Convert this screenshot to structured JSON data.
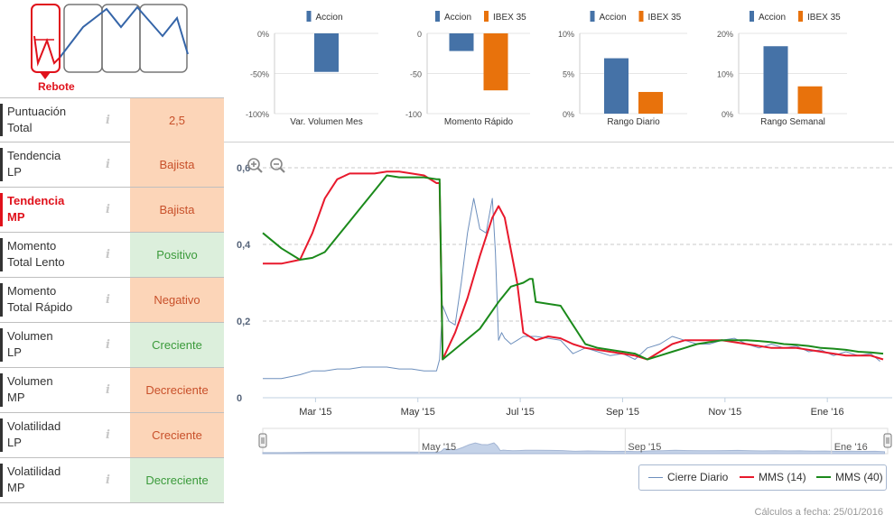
{
  "logo": {
    "label": "Rebote"
  },
  "indicators": [
    {
      "name": "Puntuación\nTotal",
      "value": "2,5",
      "status": "bad"
    },
    {
      "name": "Tendencia\nLP",
      "value": "Bajista",
      "status": "bad"
    },
    {
      "name": "Tendencia\nMP",
      "value": "Bajista",
      "status": "bad",
      "active": true
    },
    {
      "name": "Momento\nTotal Lento",
      "value": "Positivo",
      "status": "good"
    },
    {
      "name": "Momento\nTotal Rápido",
      "value": "Negativo",
      "status": "bad"
    },
    {
      "name": "Volumen\nLP",
      "value": "Creciente",
      "status": "good"
    },
    {
      "name": "Volumen\nMP",
      "value": "Decreciente",
      "status": "bad"
    },
    {
      "name": "Volatilidad\nLP",
      "value": "Creciente",
      "status": "bad"
    },
    {
      "name": "Volatilidad\nMP",
      "value": "Decreciente",
      "status": "good"
    }
  ],
  "info_glyph": "i",
  "colors": {
    "accion": "#4572a7",
    "ibex": "#e8720c",
    "cierre": "#6d8fbd",
    "mms14": "#e8192c",
    "mms40": "#1b8a1b",
    "navigator": "#a4b6d4"
  },
  "chart_data": [
    {
      "type": "bar",
      "title": "Var. Volumen Mes",
      "legend": [
        "Accion"
      ],
      "series": [
        {
          "name": "Accion",
          "values": [
            -48
          ]
        }
      ],
      "ylim": [
        -100,
        0
      ],
      "yticks": [
        0,
        -50,
        -100
      ],
      "ytick_labels": [
        "0%",
        "-50%",
        "-100%"
      ]
    },
    {
      "type": "bar",
      "title": "Momento Rápido",
      "legend": [
        "Accion",
        "IBEX 35"
      ],
      "series": [
        {
          "name": "Accion",
          "values": [
            -22
          ]
        },
        {
          "name": "IBEX 35",
          "values": [
            -71
          ]
        }
      ],
      "ylim": [
        -100,
        0
      ],
      "yticks": [
        0,
        -50,
        -100
      ],
      "ytick_labels": [
        "0",
        "-50",
        "-100"
      ]
    },
    {
      "type": "bar",
      "title": "Rango Diario",
      "legend": [
        "Accion",
        "IBEX 35"
      ],
      "series": [
        {
          "name": "Accion",
          "values": [
            6.9
          ]
        },
        {
          "name": "IBEX 35",
          "values": [
            2.7
          ]
        }
      ],
      "ylim": [
        0,
        10
      ],
      "yticks": [
        10,
        5,
        0
      ],
      "ytick_labels": [
        "10%",
        "5%",
        "0%"
      ]
    },
    {
      "type": "bar",
      "title": "Rango Semanal",
      "legend": [
        "Accion",
        "IBEX 35"
      ],
      "series": [
        {
          "name": "Accion",
          "values": [
            16.8
          ]
        },
        {
          "name": "IBEX 35",
          "values": [
            6.8
          ]
        }
      ],
      "ylim": [
        0,
        20
      ],
      "yticks": [
        20,
        10,
        0
      ],
      "ytick_labels": [
        "20%",
        "10%",
        "0%"
      ]
    },
    {
      "type": "line",
      "title": "",
      "xlim": [
        0,
        100
      ],
      "ylim": [
        0,
        0.6
      ],
      "yticks": [
        0,
        0.2,
        0.4,
        0.6
      ],
      "ytick_labels": [
        "0",
        "0,2",
        "0,4",
        "0,6"
      ],
      "xticks": [
        8.5,
        25,
        41.5,
        58,
        74.5,
        91
      ],
      "xtick_labels": [
        "Mar '15",
        "May '15",
        "Jul '15",
        "Sep '15",
        "Nov '15",
        "Ene '16"
      ],
      "series": [
        {
          "name": "Cierre Diario",
          "x": [
            0,
            3,
            6,
            8,
            10,
            12,
            14,
            16,
            18,
            20,
            22,
            24,
            26,
            28,
            28.5,
            29,
            30,
            31,
            32,
            33,
            34,
            35,
            36,
            37,
            37.5,
            38,
            38.5,
            39,
            40,
            41,
            42,
            44,
            46,
            48,
            50,
            52,
            54,
            56,
            58,
            60,
            62,
            64,
            66,
            68,
            70,
            72,
            74,
            76,
            78,
            80,
            82,
            84,
            86,
            88,
            90,
            92,
            94,
            96,
            98,
            99.5
          ],
          "y": [
            0.05,
            0.05,
            0.06,
            0.07,
            0.07,
            0.075,
            0.075,
            0.08,
            0.08,
            0.08,
            0.075,
            0.075,
            0.07,
            0.07,
            0.1,
            0.24,
            0.2,
            0.19,
            0.3,
            0.43,
            0.52,
            0.44,
            0.43,
            0.52,
            0.38,
            0.15,
            0.17,
            0.155,
            0.14,
            0.15,
            0.16,
            0.16,
            0.155,
            0.15,
            0.115,
            0.13,
            0.12,
            0.11,
            0.115,
            0.1,
            0.13,
            0.14,
            0.16,
            0.15,
            0.14,
            0.14,
            0.15,
            0.155,
            0.14,
            0.13,
            0.14,
            0.13,
            0.135,
            0.12,
            0.125,
            0.11,
            0.12,
            0.11,
            0.115,
            0.095
          ]
        },
        {
          "name": "MMS (14)",
          "x": [
            0,
            3,
            6,
            8,
            10,
            12,
            14,
            16,
            18,
            20,
            22,
            24,
            26,
            28,
            28.5,
            29,
            31,
            33,
            35,
            37,
            38,
            39,
            41,
            42,
            44,
            46,
            48,
            50,
            52,
            54,
            56,
            58,
            60,
            62,
            64,
            66,
            68,
            70,
            72,
            74,
            76,
            78,
            80,
            82,
            84,
            86,
            88,
            90,
            92,
            94,
            96,
            98,
            100
          ],
          "y": [
            0.35,
            0.35,
            0.36,
            0.43,
            0.52,
            0.57,
            0.585,
            0.585,
            0.585,
            0.59,
            0.59,
            0.585,
            0.58,
            0.56,
            0.56,
            0.1,
            0.17,
            0.26,
            0.37,
            0.47,
            0.5,
            0.47,
            0.3,
            0.17,
            0.15,
            0.16,
            0.155,
            0.14,
            0.13,
            0.125,
            0.12,
            0.115,
            0.11,
            0.1,
            0.12,
            0.14,
            0.15,
            0.15,
            0.15,
            0.15,
            0.145,
            0.14,
            0.135,
            0.13,
            0.13,
            0.13,
            0.125,
            0.12,
            0.115,
            0.11,
            0.11,
            0.11,
            0.1
          ]
        },
        {
          "name": "MMS (40)",
          "x": [
            0,
            3,
            6,
            8,
            10,
            12,
            14,
            16,
            18,
            20,
            22,
            24,
            26,
            28,
            28.5,
            29,
            32,
            35,
            38,
            40,
            42,
            43,
            43.5,
            44,
            46,
            48,
            50,
            52,
            54,
            56,
            58,
            60,
            62,
            64,
            66,
            68,
            70,
            72,
            74,
            76,
            78,
            80,
            82,
            84,
            86,
            88,
            90,
            92,
            94,
            96,
            98,
            100
          ],
          "y": [
            0.43,
            0.39,
            0.36,
            0.365,
            0.38,
            0.42,
            0.46,
            0.5,
            0.54,
            0.58,
            0.575,
            0.575,
            0.575,
            0.57,
            0.57,
            0.1,
            0.14,
            0.18,
            0.25,
            0.29,
            0.3,
            0.31,
            0.31,
            0.25,
            0.245,
            0.24,
            0.19,
            0.14,
            0.13,
            0.125,
            0.12,
            0.115,
            0.1,
            0.11,
            0.12,
            0.13,
            0.14,
            0.145,
            0.15,
            0.15,
            0.15,
            0.148,
            0.145,
            0.14,
            0.138,
            0.135,
            0.13,
            0.128,
            0.125,
            0.12,
            0.118,
            0.115
          ]
        }
      ],
      "navigator": {
        "labels": [
          "May '15",
          "Sep '15",
          "Ene '16"
        ],
        "label_x": [
          25,
          58,
          91
        ]
      }
    }
  ],
  "footer": {
    "calc_date": "Cálculos a fecha: 25/01/2016"
  }
}
